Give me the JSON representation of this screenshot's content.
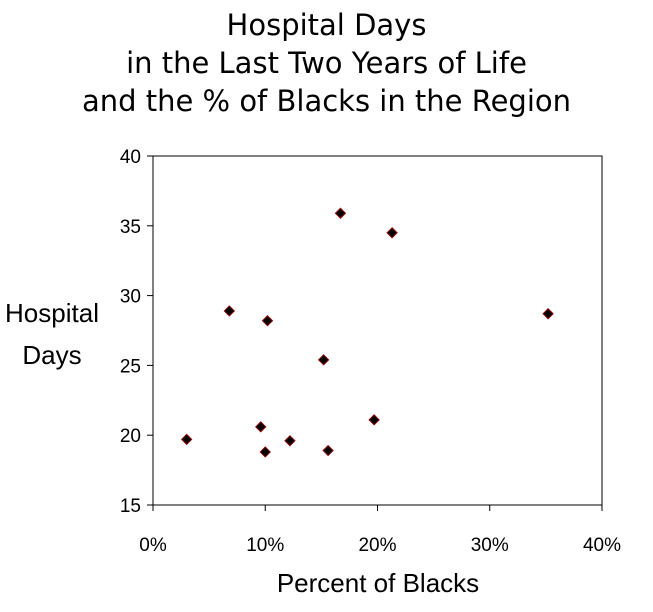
{
  "chart_data": {
    "type": "scatter",
    "title_lines": [
      "Hospital Days",
      "in the Last Two Years of Life",
      "and the % of Blacks in the Region"
    ],
    "xlabel": "Percent of Blacks",
    "ylabel_lines": [
      "Hospital",
      "Days"
    ],
    "xlim": [
      0,
      40
    ],
    "ylim": [
      15,
      40
    ],
    "x_ticks": [
      0,
      10,
      20,
      30,
      40
    ],
    "x_tick_labels": [
      "0%",
      "10%",
      "20%",
      "30%",
      "40%"
    ],
    "y_ticks": [
      15,
      20,
      25,
      30,
      35,
      40
    ],
    "y_tick_labels": [
      "15",
      "20",
      "25",
      "30",
      "35",
      "40"
    ],
    "grid": false,
    "marker": "diamond",
    "marker_color": "#000000",
    "marker_edge_color": "#8b0000",
    "points": [
      {
        "x": 3.0,
        "y": 19.7
      },
      {
        "x": 6.8,
        "y": 28.9
      },
      {
        "x": 9.6,
        "y": 20.6
      },
      {
        "x": 10.0,
        "y": 18.8
      },
      {
        "x": 10.2,
        "y": 28.2
      },
      {
        "x": 12.2,
        "y": 19.6
      },
      {
        "x": 15.2,
        "y": 25.4
      },
      {
        "x": 15.6,
        "y": 18.9
      },
      {
        "x": 16.7,
        "y": 35.9
      },
      {
        "x": 19.7,
        "y": 21.1
      },
      {
        "x": 21.3,
        "y": 34.5
      },
      {
        "x": 35.2,
        "y": 28.7
      }
    ]
  }
}
